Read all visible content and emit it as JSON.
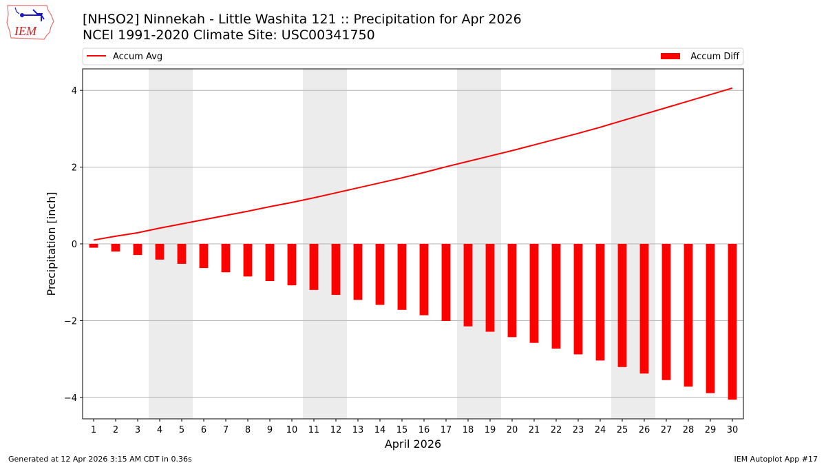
{
  "header": {
    "title": "[NHSO2] Ninnekah - Little Washita 121 :: Precipitation for Apr 2026",
    "subtitle": "NCEI 1991-2020 Climate Site: USC00341750",
    "logo_text": "IEM"
  },
  "footer": {
    "left": "Generated at 12 Apr 2026 3:15 AM CDT in 0.36s",
    "right": "IEM Autoplot App #17"
  },
  "chart_data": {
    "type": "bar+line",
    "xlabel": "April 2026",
    "ylabel": "Precipitation [inch]",
    "xlim": [
      0.5,
      30.5
    ],
    "ylim": [
      -4.56,
      4.56
    ],
    "yticks": [
      -4,
      -2,
      0,
      2,
      4
    ],
    "ytick_labels": [
      "−4",
      "−2",
      "0",
      "2",
      "4"
    ],
    "grid": "horizontal",
    "legend_placement": "top, above plot",
    "x": [
      1,
      2,
      3,
      4,
      5,
      6,
      7,
      8,
      9,
      10,
      11,
      12,
      13,
      14,
      15,
      16,
      17,
      18,
      19,
      20,
      21,
      22,
      23,
      24,
      25,
      26,
      27,
      28,
      29,
      30
    ],
    "weekend_shading": [
      [
        3.5,
        5.5
      ],
      [
        10.5,
        12.5
      ],
      [
        17.5,
        19.5
      ],
      [
        24.5,
        26.5
      ]
    ],
    "series": [
      {
        "name": "Accum Avg",
        "kind": "line",
        "color": "#ff0000",
        "values": [
          0.1,
          0.2,
          0.29,
          0.41,
          0.52,
          0.63,
          0.74,
          0.85,
          0.97,
          1.08,
          1.2,
          1.33,
          1.46,
          1.59,
          1.72,
          1.86,
          2.01,
          2.15,
          2.29,
          2.43,
          2.58,
          2.73,
          2.88,
          3.04,
          3.21,
          3.38,
          3.55,
          3.72,
          3.89,
          4.06
        ]
      },
      {
        "name": "Accum Diff",
        "kind": "bar",
        "color": "#ff0000",
        "values": [
          -0.1,
          -0.2,
          -0.29,
          -0.41,
          -0.52,
          -0.63,
          -0.74,
          -0.85,
          -0.97,
          -1.08,
          -1.2,
          -1.33,
          -1.46,
          -1.59,
          -1.72,
          -1.86,
          -2.01,
          -2.15,
          -2.29,
          -2.43,
          -2.58,
          -2.73,
          -2.88,
          -3.04,
          -3.21,
          -3.38,
          -3.55,
          -3.72,
          -3.89,
          -4.06
        ]
      }
    ]
  }
}
